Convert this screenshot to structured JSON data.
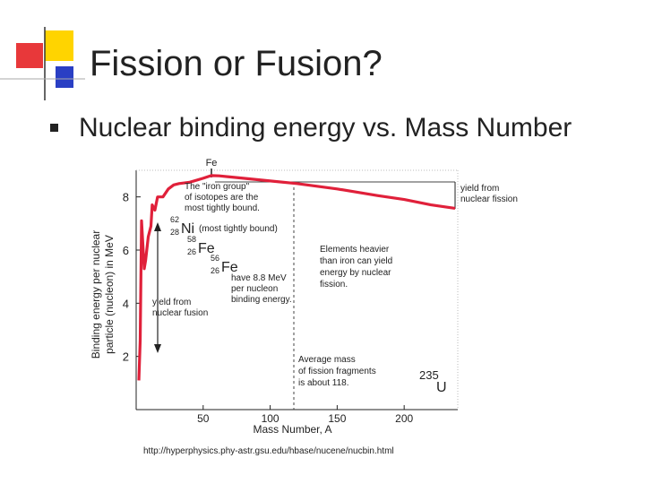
{
  "slide": {
    "title": "Fission or Fusion?",
    "bullet": "Nuclear binding energy vs. Mass Number",
    "source": "http://hyperphysics.phy-astr.gsu.edu/hbase/nucene/nucbin.html"
  },
  "chart_data": {
    "type": "line",
    "x_label": "Mass Number, A",
    "y_label": [
      "Binding energy per nuclear",
      "particle (nucleon) in MeV"
    ],
    "x": [
      2,
      3,
      4,
      6,
      7,
      9,
      11,
      12,
      14,
      16,
      20,
      24,
      28,
      32,
      40,
      50,
      56,
      62,
      80,
      100,
      120,
      150,
      180,
      200,
      220,
      238
    ],
    "values": [
      1.1,
      2.6,
      7.1,
      5.3,
      5.6,
      6.5,
      6.9,
      7.7,
      7.5,
      8.0,
      8.0,
      8.3,
      8.45,
      8.5,
      8.55,
      8.7,
      8.8,
      8.79,
      8.7,
      8.6,
      8.5,
      8.3,
      8.05,
      7.9,
      7.7,
      7.57
    ],
    "color": "#e0203a",
    "xlim": [
      0,
      240
    ],
    "ylim": [
      0,
      9
    ],
    "xticks": [
      50,
      100,
      150,
      200
    ],
    "yticks": [
      2,
      4,
      6,
      8
    ],
    "annotations": {
      "fe_top": "Fe",
      "iron_group": [
        "The \"iron group\"",
        "of isotopes are the",
        "most tightly bound."
      ],
      "ni": {
        "mass": "62",
        "number": "28",
        "symbol": "Ni"
      },
      "most_tightly": "(most tightly bound)",
      "fe58": {
        "mass": "58",
        "number": "26",
        "symbol": "Fe"
      },
      "fe56": {
        "mass": "56",
        "number": "26",
        "symbol": "Fe"
      },
      "have": [
        "have 8.8 MeV",
        "per nucleon",
        "binding energy."
      ],
      "fusion": [
        "yield from",
        "nuclear fusion"
      ],
      "heavier": [
        "Elements heavier",
        "than iron can yield",
        "energy by nuclear",
        "fission."
      ],
      "average": [
        "Average mass",
        "of fission fragments",
        "is about 118."
      ],
      "fission": [
        "yield from",
        "nuclear fission"
      ],
      "u235": {
        "mass": "235",
        "symbol": "U"
      }
    }
  }
}
